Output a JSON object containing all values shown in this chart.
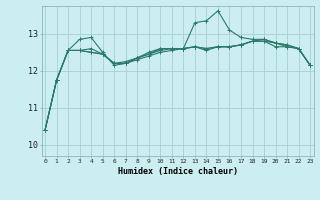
{
  "xlabel": "Humidex (Indice chaleur)",
  "bg_color": "#cdeef0",
  "grid_color": "#aad4d6",
  "line_color": "#2a7a6a",
  "x_ticks": [
    0,
    1,
    2,
    3,
    4,
    5,
    6,
    7,
    8,
    9,
    10,
    11,
    12,
    13,
    14,
    15,
    16,
    17,
    18,
    19,
    20,
    21,
    22,
    23
  ],
  "y_ticks": [
    10,
    11,
    12,
    13
  ],
  "ylim": [
    9.7,
    13.75
  ],
  "xlim": [
    -0.3,
    23.3
  ],
  "series": [
    [
      10.4,
      11.75,
      12.55,
      12.85,
      12.9,
      12.5,
      12.15,
      12.2,
      12.3,
      12.4,
      12.5,
      12.55,
      12.6,
      13.3,
      13.35,
      13.62,
      13.1,
      12.9,
      12.85,
      12.85,
      12.75,
      12.7,
      12.6,
      12.15
    ],
    [
      10.4,
      11.75,
      12.55,
      12.55,
      12.6,
      12.45,
      12.2,
      12.2,
      12.35,
      12.45,
      12.55,
      12.6,
      12.6,
      12.65,
      12.55,
      12.65,
      12.65,
      12.7,
      12.8,
      12.85,
      12.75,
      12.7,
      12.6,
      12.15
    ],
    [
      10.4,
      11.75,
      12.55,
      12.55,
      12.5,
      12.45,
      12.2,
      12.25,
      12.35,
      12.45,
      12.6,
      12.6,
      12.6,
      12.65,
      12.6,
      12.65,
      12.65,
      12.7,
      12.8,
      12.8,
      12.75,
      12.65,
      12.6,
      12.15
    ],
    [
      10.4,
      11.75,
      12.55,
      12.55,
      12.5,
      12.45,
      12.2,
      12.2,
      12.35,
      12.5,
      12.6,
      12.6,
      12.6,
      12.65,
      12.6,
      12.65,
      12.65,
      12.7,
      12.8,
      12.8,
      12.65,
      12.65,
      12.6,
      12.15
    ]
  ]
}
